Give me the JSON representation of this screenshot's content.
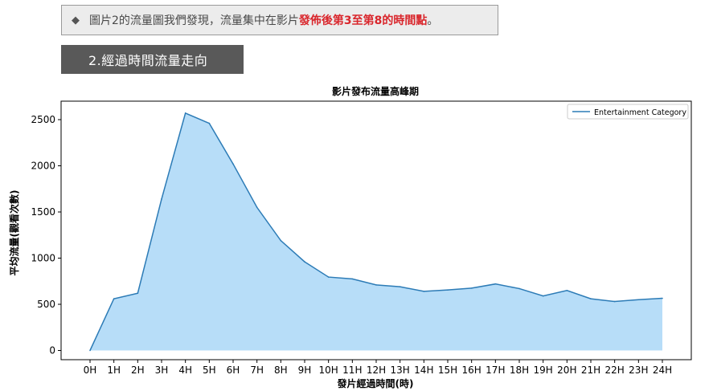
{
  "note": {
    "icon": "diamond-bullet-icon",
    "text_plain": "圖片2的流量圖我們發現，流量集中在影片",
    "text_highlight": "發佈後第3至第8的時間點",
    "text_end": "。",
    "highlight_color": "#d9262c"
  },
  "section": {
    "title": "2.經過時間流量走向"
  },
  "chart_data": {
    "type": "area",
    "title": "影片發布流量高峰期",
    "xlabel": "發片經過時間(時)",
    "ylabel": "平均流量(觀看次數)",
    "categories": [
      "0H",
      "1H",
      "2H",
      "3H",
      "4H",
      "5H",
      "6H",
      "7H",
      "8H",
      "9H",
      "10H",
      "11H",
      "12H",
      "13H",
      "14H",
      "15H",
      "16H",
      "17H",
      "18H",
      "19H",
      "20H",
      "21H",
      "22H",
      "23H",
      "24H"
    ],
    "series": [
      {
        "name": "Entertainment Category",
        "values": [
          0,
          560,
          620,
          1640,
          2570,
          2460,
          2020,
          1550,
          1190,
          960,
          795,
          775,
          710,
          690,
          640,
          655,
          675,
          720,
          670,
          590,
          650,
          560,
          530,
          550,
          565
        ],
        "line_color": "#2c7bb6",
        "fill_color": "#b7ddf8"
      }
    ],
    "yticks": [
      0,
      500,
      1000,
      1500,
      2000,
      2500
    ],
    "ylim": [
      -100,
      2700
    ],
    "grid": false,
    "legend_position": "top-right"
  }
}
